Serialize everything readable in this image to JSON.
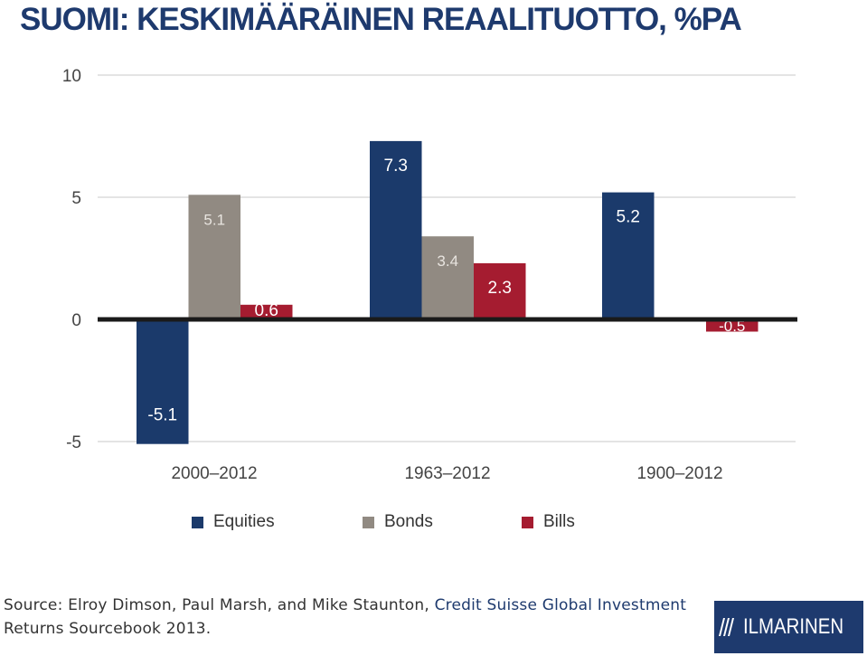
{
  "title": "SUOMI: KESKIMÄÄRÄINEN REAALITUOTTO, %PA",
  "chart_data": {
    "type": "bar",
    "title": "",
    "xlabel": "",
    "ylabel": "",
    "ylim": [
      -5,
      10
    ],
    "yticks": [
      10,
      5,
      0,
      -5
    ],
    "grid": true,
    "legend_position": "bottom",
    "categories": [
      "2000–2012",
      "1963–2012",
      "1900–2012"
    ],
    "series": [
      {
        "name": "Equities",
        "color": "#1b3a6b",
        "values": [
          -5.1,
          7.3,
          5.2
        ],
        "labels": [
          "-5.1",
          "7.3",
          "5.2"
        ]
      },
      {
        "name": "Bonds",
        "color": "#918a82",
        "values": [
          5.1,
          3.4,
          null
        ],
        "labels": [
          "5.1",
          "3.4",
          ""
        ]
      },
      {
        "name": "Bills",
        "color": "#a51c30",
        "values": [
          0.6,
          2.3,
          -0.5
        ],
        "labels": [
          "0.6",
          "2.3",
          "-0.5"
        ]
      }
    ]
  },
  "source": {
    "prefix": "Source: Elroy Dimson, Paul Marsh, and Mike Staunton, ",
    "highlight": "Credit Suisse Global Investment",
    "line2": "Returns Sourcebook 2013."
  },
  "logo": {
    "text": "ILMARINEN",
    "background": "#1e3a6e"
  }
}
